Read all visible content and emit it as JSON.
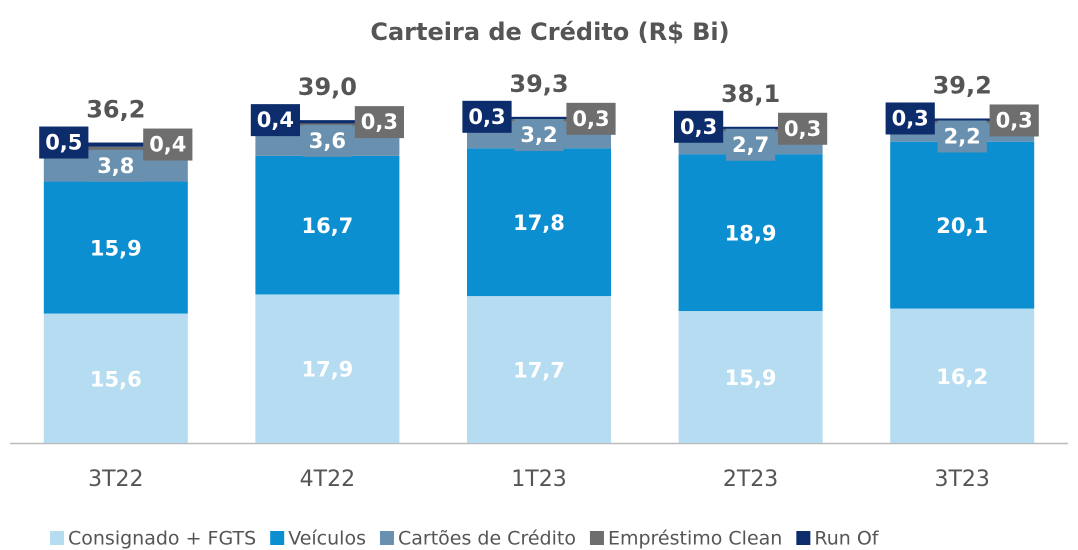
{
  "chart_data": {
    "type": "stacked_bar",
    "title": "Carteira de Crédito (R$ Bi)",
    "categories": [
      "3T22",
      "4T22",
      "1T23",
      "2T23",
      "3T23"
    ],
    "series": [
      {
        "name": "Consignado + FGTS",
        "color": "#b6dcf1",
        "values": [
          15.6,
          17.9,
          17.7,
          15.9,
          16.2
        ],
        "value_labels": [
          "15,6",
          "17,9",
          "17,7",
          "15,9",
          "16,2"
        ]
      },
      {
        "name": "Veículos",
        "color": "#0b8fd1",
        "values": [
          15.9,
          16.7,
          17.8,
          18.9,
          20.1
        ],
        "value_labels": [
          "15,9",
          "16,7",
          "17,8",
          "18,9",
          "20,1"
        ]
      },
      {
        "name": "Cartões de Crédito",
        "color": "#6990ae",
        "values": [
          3.8,
          3.6,
          3.2,
          2.7,
          2.2
        ],
        "value_labels": [
          "3,8",
          "3,6",
          "3,2",
          "2,7",
          "2,2"
        ]
      },
      {
        "name": "Empréstimo Clean",
        "color": "#6e6e6e",
        "values": [
          0.4,
          0.3,
          0.3,
          0.3,
          0.3
        ],
        "value_labels": [
          "0,4",
          "0,3",
          "0,3",
          "0,3",
          "0,3"
        ]
      },
      {
        "name": "Run Of",
        "color": "#0c2c6c",
        "values": [
          0.5,
          0.4,
          0.3,
          0.3,
          0.3
        ],
        "value_labels": [
          "0,5",
          "0,4",
          "0,3",
          "0,3",
          "0,3"
        ]
      }
    ],
    "totals": [
      36.2,
      39.0,
      39.3,
      38.1,
      39.2
    ],
    "total_labels": [
      "36,2",
      "39,0",
      "39,3",
      "38,1",
      "39,2"
    ]
  }
}
